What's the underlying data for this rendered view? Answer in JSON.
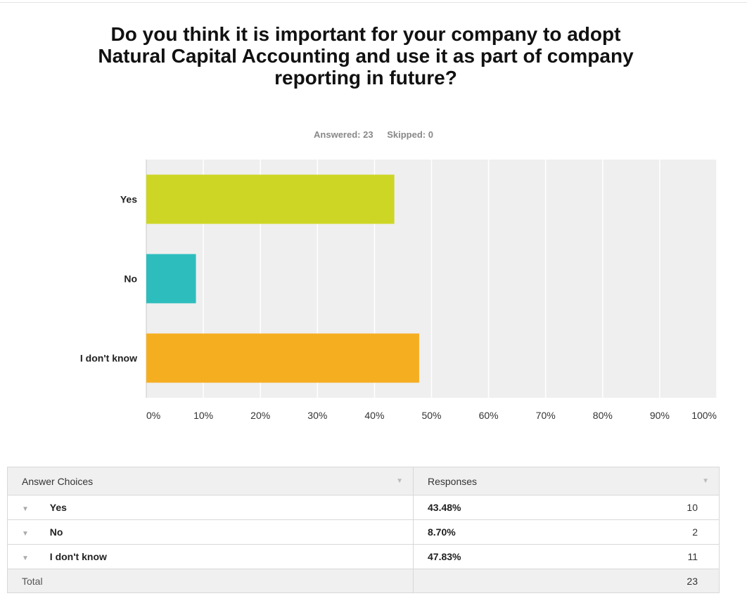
{
  "title": "Do you think it is important for your company to adopt Natural Capital Accounting and use it as part of company reporting in future?",
  "answered_label": "Answered: 23",
  "skipped_label": "Skipped: 0",
  "colors": {
    "yes": "#cdd625",
    "no": "#2ebdbd",
    "dont_know": "#f6ae21",
    "plot_bg": "#efefef"
  },
  "chart_data": {
    "type": "bar",
    "orientation": "horizontal",
    "categories": [
      "Yes",
      "No",
      "I don't know"
    ],
    "values": [
      43.48,
      8.7,
      47.83
    ],
    "xticks": [
      "0%",
      "10%",
      "20%",
      "30%",
      "40%",
      "50%",
      "60%",
      "70%",
      "80%",
      "90%",
      "100%"
    ],
    "xlim": [
      0,
      100
    ],
    "grid": true,
    "legend": "none"
  },
  "table": {
    "header_choices": "Answer Choices",
    "header_responses": "Responses",
    "rows": [
      {
        "choice": "Yes",
        "percent": "43.48%",
        "count": "10"
      },
      {
        "choice": "No",
        "percent": "8.70%",
        "count": "2"
      },
      {
        "choice": "I don't know",
        "percent": "47.83%",
        "count": "11"
      }
    ],
    "total_label": "Total",
    "total_count": "23"
  }
}
